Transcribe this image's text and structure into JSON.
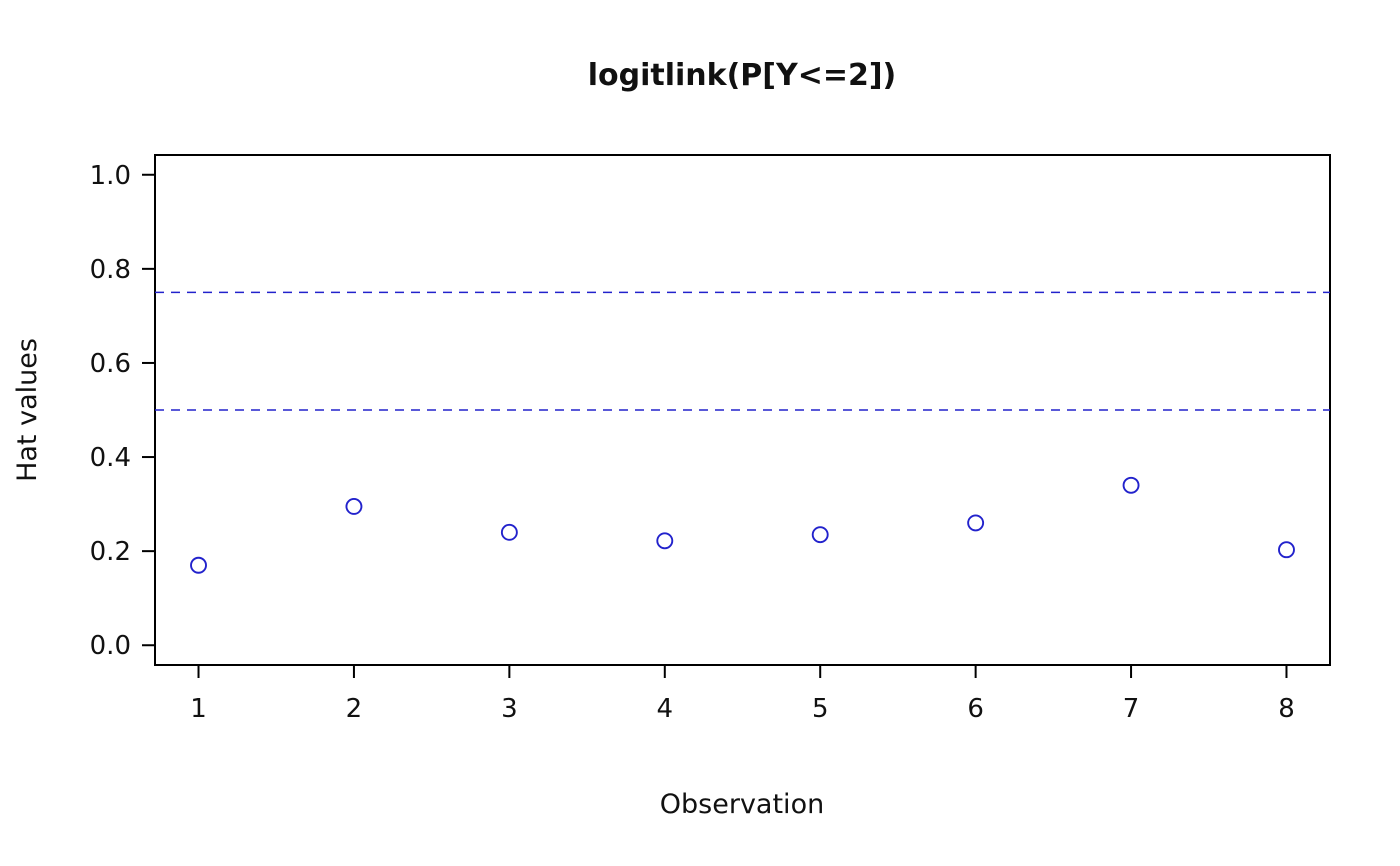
{
  "chart_data": {
    "type": "scatter",
    "title": "logitlink(P[Y<=2])",
    "xlabel": "Observation",
    "ylabel": "Hat values",
    "x": [
      1,
      2,
      3,
      4,
      5,
      6,
      7,
      8
    ],
    "values": [
      0.17,
      0.295,
      0.24,
      0.222,
      0.235,
      0.26,
      0.34,
      0.203
    ],
    "series_name": "Hat values",
    "xticks": [
      1,
      2,
      3,
      4,
      5,
      6,
      7,
      8
    ],
    "xtick_labels": [
      "1",
      "2",
      "3",
      "4",
      "5",
      "6",
      "7",
      "8"
    ],
    "yticks": [
      0.0,
      0.2,
      0.4,
      0.6,
      0.8,
      1.0
    ],
    "ytick_labels": [
      "0.0",
      "0.2",
      "0.4",
      "0.6",
      "0.8",
      "1.0"
    ],
    "xlim": [
      0.72,
      8.28
    ],
    "ylim": [
      -0.042,
      1.042
    ],
    "reference_lines": [
      0.5,
      0.75
    ],
    "grid": false,
    "legend": false,
    "marker": "open-circle",
    "point_color": "#2222cc",
    "reference_line_color": "#2222cc",
    "axis_color": "#000000",
    "background_color": "#ffffff"
  }
}
